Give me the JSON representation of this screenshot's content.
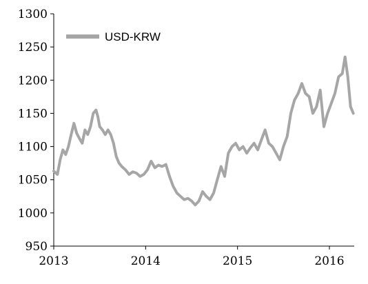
{
  "chart_data": {
    "type": "line",
    "title": "",
    "xlabel": "",
    "ylabel": "",
    "ylim": [
      950,
      1300
    ],
    "xlim": [
      2013.0,
      2016.27
    ],
    "yticks": [
      950,
      1000,
      1050,
      1100,
      1150,
      1200,
      1250,
      1300
    ],
    "xticks": [
      2013,
      2014,
      2015,
      2016
    ],
    "grid": false,
    "legend_position": "top-left",
    "series": [
      {
        "name": "USD-KRW",
        "color": "#a6a6a6",
        "x": [
          2013.0,
          2013.04,
          2013.07,
          2013.1,
          2013.13,
          2013.16,
          2013.19,
          2013.22,
          2013.25,
          2013.28,
          2013.31,
          2013.34,
          2013.37,
          2013.4,
          2013.43,
          2013.46,
          2013.48,
          2013.5,
          2013.53,
          2013.56,
          2013.59,
          2013.62,
          2013.65,
          2013.68,
          2013.71,
          2013.74,
          2013.78,
          2013.82,
          2013.86,
          2013.9,
          2013.94,
          2013.98,
          2014.02,
          2014.06,
          2014.1,
          2014.14,
          2014.18,
          2014.22,
          2014.26,
          2014.3,
          2014.34,
          2014.38,
          2014.42,
          2014.46,
          2014.5,
          2014.54,
          2014.58,
          2014.62,
          2014.66,
          2014.7,
          2014.74,
          2014.78,
          2014.82,
          2014.86,
          2014.9,
          2014.94,
          2014.98,
          2015.02,
          2015.06,
          2015.1,
          2015.14,
          2015.18,
          2015.22,
          2015.26,
          2015.3,
          2015.34,
          2015.38,
          2015.42,
          2015.46,
          2015.5,
          2015.54,
          2015.58,
          2015.62,
          2015.66,
          2015.7,
          2015.74,
          2015.78,
          2015.82,
          2015.86,
          2015.9,
          2015.94,
          2015.98,
          2016.02,
          2016.06,
          2016.1,
          2016.14,
          2016.17,
          2016.2,
          2016.23,
          2016.26
        ],
        "values": [
          1063,
          1058,
          1080,
          1095,
          1088,
          1100,
          1118,
          1135,
          1120,
          1112,
          1105,
          1125,
          1118,
          1130,
          1150,
          1155,
          1145,
          1130,
          1125,
          1118,
          1125,
          1118,
          1105,
          1085,
          1075,
          1070,
          1065,
          1058,
          1062,
          1060,
          1055,
          1058,
          1065,
          1078,
          1068,
          1072,
          1070,
          1073,
          1055,
          1040,
          1030,
          1025,
          1020,
          1022,
          1018,
          1012,
          1018,
          1032,
          1025,
          1020,
          1030,
          1050,
          1070,
          1055,
          1090,
          1100,
          1105,
          1095,
          1100,
          1090,
          1098,
          1105,
          1095,
          1110,
          1125,
          1105,
          1100,
          1090,
          1080,
          1100,
          1115,
          1150,
          1170,
          1180,
          1195,
          1180,
          1175,
          1150,
          1160,
          1185,
          1130,
          1150,
          1165,
          1180,
          1205,
          1210,
          1235,
          1205,
          1160,
          1150
        ]
      }
    ]
  }
}
